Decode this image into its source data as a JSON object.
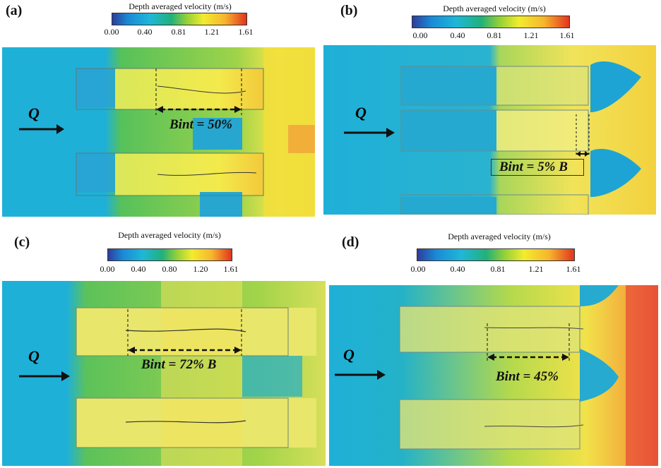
{
  "panels": [
    {
      "id": "a",
      "label": "(a)",
      "colorbar_title": "Depth averaged velocity (m/s)",
      "ticks": [
        "0.00",
        "0.40",
        "0.81",
        "1.21",
        "1.61"
      ],
      "flow_label": "Q",
      "bint_label": "Bint = 50%"
    },
    {
      "id": "b",
      "label": "(b)",
      "colorbar_title": "Depth averaged velocity (m/s)",
      "ticks": [
        "0.00",
        "0.40",
        "0.81",
        "1.21",
        "1.61"
      ],
      "flow_label": "Q",
      "bint_label": "Bint = 5% B"
    },
    {
      "id": "c",
      "label": "(c)",
      "colorbar_title": "Depth averaged velocity (m/s)",
      "ticks": [
        "0.00",
        "0.40",
        "0.80",
        "1.20",
        "1.61"
      ],
      "flow_label": "Q",
      "bint_label": "Bint = 72% B"
    },
    {
      "id": "d",
      "label": "(d)",
      "colorbar_title": "Depth averaged velocity (m/s)",
      "ticks": [
        "0.00",
        "0.40",
        "0.81",
        "1.21",
        "1.61"
      ],
      "flow_label": "Q",
      "bint_label": "Bint = 45%"
    }
  ],
  "colors": {
    "low": "#1fb0d8",
    "mid": "#3dbb6a",
    "high": "#f2e52e",
    "max": "#e2341e"
  }
}
